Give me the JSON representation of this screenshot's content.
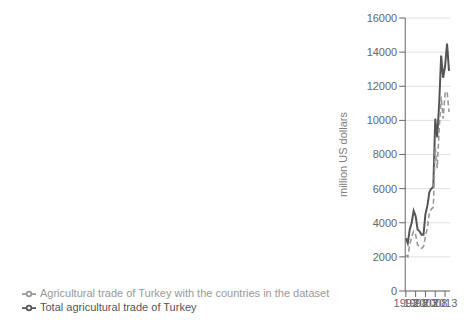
{
  "chart_data": {
    "type": "line",
    "x": [
      1993,
      1994,
      1995,
      1996,
      1997,
      1998,
      1999,
      2000,
      2001,
      2002,
      2003,
      2004,
      2005,
      2006,
      2007,
      2008,
      2009,
      2010,
      2011,
      2012,
      2013,
      2014,
      2015
    ],
    "series": [
      {
        "name": "Total agricultural trade of Turkey",
        "color": "#555555",
        "line_style": "solid",
        "values": [
          3100,
          2800,
          3600,
          4000,
          4700,
          4400,
          3600,
          3500,
          3300,
          3300,
          4500,
          5000,
          5800,
          6000,
          6100,
          10100,
          9000,
          11000,
          13800,
          12500,
          13200,
          14500,
          12900
        ]
      },
      {
        "name": "Agricultural trade of Turkey with the countries in the dataset",
        "color": "#999999",
        "line_style": "dashed",
        "values": [
          2100,
          2000,
          2700,
          3200,
          3500,
          3300,
          2700,
          2600,
          2500,
          2600,
          3200,
          3700,
          4600,
          4800,
          4900,
          8400,
          7200,
          9500,
          11400,
          10100,
          11600,
          11700,
          10500
        ]
      }
    ],
    "ylabel": "million US dollars",
    "xlim": [
      1992.7,
      2015.5
    ],
    "xticks": [
      1993,
      1998,
      2003,
      2008,
      2013
    ],
    "ylim": [
      0,
      16000
    ],
    "yticks": [
      0,
      2000,
      4000,
      6000,
      8000,
      10000,
      12000,
      14000,
      16000
    ],
    "grid": true,
    "legend": "bottom"
  }
}
